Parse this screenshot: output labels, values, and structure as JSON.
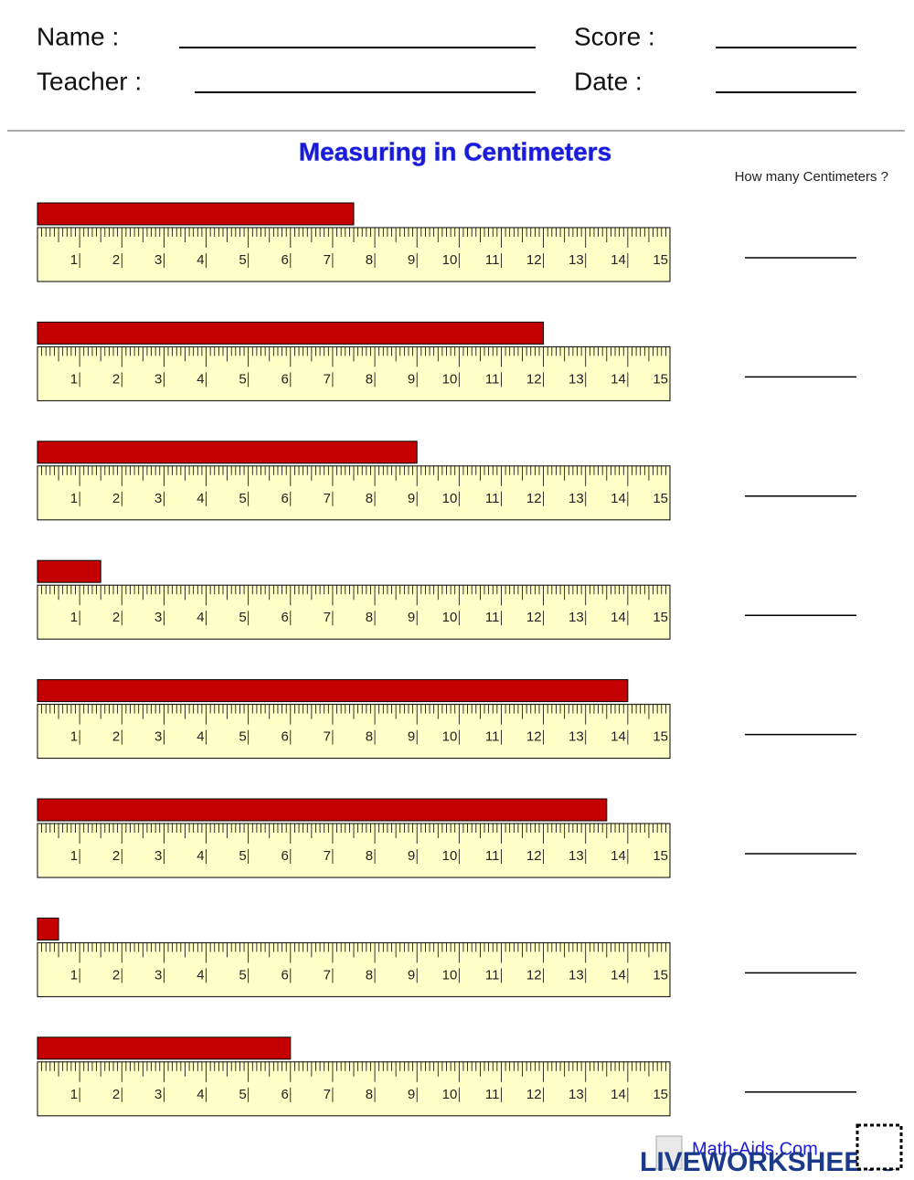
{
  "header": {
    "name_label": "Name :",
    "teacher_label": "Teacher :",
    "score_label": "Score :",
    "date_label": "Date :"
  },
  "title": "Measuring in Centimeters",
  "answer_header": "How many Centimeters ?",
  "ruler_labels": [
    1,
    2,
    3,
    4,
    5,
    6,
    7,
    8,
    9,
    10,
    11,
    12,
    13,
    14,
    15
  ],
  "problems": [
    {
      "length": 7.5
    },
    {
      "length": 12
    },
    {
      "length": 9
    },
    {
      "length": 1.5
    },
    {
      "length": 14
    },
    {
      "length": 13.5
    },
    {
      "length": 0.5
    },
    {
      "length": 6
    }
  ],
  "footer": {
    "site": "Math-Aids.Com",
    "brand": "LIVEWORKSHEETS"
  }
}
